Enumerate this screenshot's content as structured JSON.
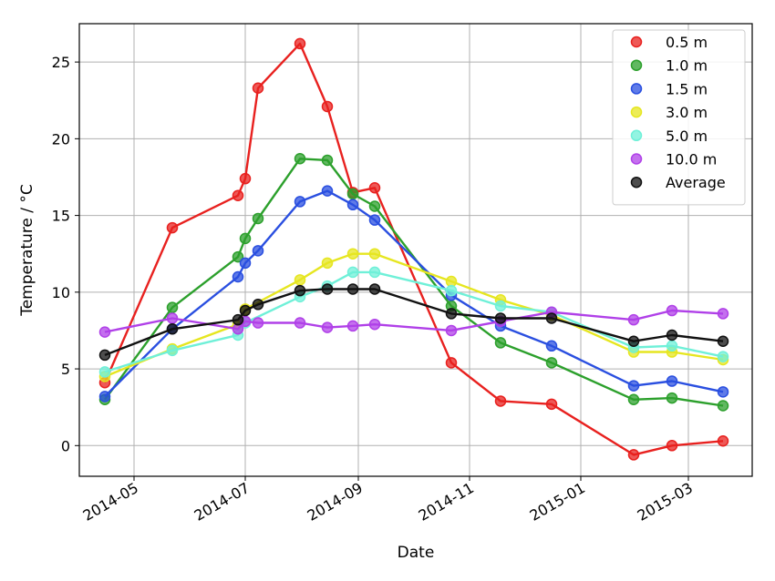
{
  "chart_data": {
    "type": "line",
    "xlabel": "Date",
    "ylabel": "Temperature / °C",
    "x_ticks": [
      "2014-05",
      "2014-07",
      "2014-09",
      "2014-11",
      "2015-01",
      "2015-03"
    ],
    "x_tick_dates": [
      "2014-05-01",
      "2014-07-01",
      "2014-09-01",
      "2014-11-01",
      "2015-01-01",
      "2015-03-01"
    ],
    "xlim": [
      "2014-04-01",
      "2015-04-05"
    ],
    "y_ticks": [
      "0",
      "5",
      "10",
      "15",
      "20",
      "25"
    ],
    "y_tick_values": [
      0,
      5,
      10,
      15,
      20,
      25
    ],
    "ylim": [
      -2,
      27.5
    ],
    "grid": true,
    "legend_position": "top-right",
    "series": [
      {
        "name": "0.5 m",
        "color": "#e8211f",
        "points": [
          [
            "2014-04-15",
            4.1
          ],
          [
            "2014-05-22",
            14.2
          ],
          [
            "2014-06-27",
            16.3
          ],
          [
            "2014-07-01",
            17.4
          ],
          [
            "2014-07-08",
            23.3
          ],
          [
            "2014-07-31",
            26.2
          ],
          [
            "2014-08-15",
            22.1
          ],
          [
            "2014-08-29",
            16.5
          ],
          [
            "2014-09-10",
            16.8
          ],
          [
            "2014-10-22",
            5.4
          ],
          [
            "2014-11-18",
            2.9
          ],
          [
            "2014-12-16",
            2.7
          ],
          [
            "2015-01-30",
            -0.6
          ],
          [
            "2015-02-20",
            0.0
          ],
          [
            "2015-03-20",
            0.3
          ]
        ]
      },
      {
        "name": "1.0 m",
        "color": "#2ca02c",
        "points": [
          [
            "2014-04-15",
            3.0
          ],
          [
            "2014-05-22",
            9.0
          ],
          [
            "2014-06-27",
            12.3
          ],
          [
            "2014-07-01",
            13.5
          ],
          [
            "2014-07-08",
            14.8
          ],
          [
            "2014-07-31",
            18.7
          ],
          [
            "2014-08-15",
            18.6
          ],
          [
            "2014-08-29",
            16.4
          ],
          [
            "2014-09-10",
            15.6
          ],
          [
            "2014-10-22",
            9.1
          ],
          [
            "2014-11-18",
            6.7
          ],
          [
            "2014-12-16",
            5.4
          ],
          [
            "2015-01-30",
            3.0
          ],
          [
            "2015-02-20",
            3.1
          ],
          [
            "2015-03-20",
            2.6
          ]
        ]
      },
      {
        "name": "1.5 m",
        "color": "#2a4fe0",
        "points": [
          [
            "2014-04-15",
            3.2
          ],
          [
            "2014-05-22",
            7.6
          ],
          [
            "2014-06-27",
            11.0
          ],
          [
            "2014-07-01",
            11.9
          ],
          [
            "2014-07-08",
            12.7
          ],
          [
            "2014-07-31",
            15.9
          ],
          [
            "2014-08-15",
            16.6
          ],
          [
            "2014-08-29",
            15.7
          ],
          [
            "2014-09-10",
            14.7
          ],
          [
            "2014-10-22",
            9.8
          ],
          [
            "2014-11-18",
            7.8
          ],
          [
            "2014-12-16",
            6.5
          ],
          [
            "2015-01-30",
            3.9
          ],
          [
            "2015-02-20",
            4.2
          ],
          [
            "2015-03-20",
            3.5
          ]
        ]
      },
      {
        "name": "3.0 m",
        "color": "#e6e620",
        "points": [
          [
            "2014-04-15",
            4.5
          ],
          [
            "2014-05-22",
            6.3
          ],
          [
            "2014-06-27",
            7.9
          ],
          [
            "2014-07-01",
            8.9
          ],
          [
            "2014-07-31",
            10.8
          ],
          [
            "2014-08-15",
            11.9
          ],
          [
            "2014-08-29",
            12.5
          ],
          [
            "2014-09-10",
            12.5
          ],
          [
            "2014-10-22",
            10.7
          ],
          [
            "2014-11-18",
            9.5
          ],
          [
            "2014-12-16",
            8.5
          ],
          [
            "2015-01-30",
            6.1
          ],
          [
            "2015-02-20",
            6.1
          ],
          [
            "2015-03-20",
            5.6
          ]
        ]
      },
      {
        "name": "5.0 m",
        "color": "#6ff0d8",
        "points": [
          [
            "2014-04-15",
            4.8
          ],
          [
            "2014-05-22",
            6.2
          ],
          [
            "2014-06-27",
            7.2
          ],
          [
            "2014-07-01",
            8.0
          ],
          [
            "2014-07-31",
            9.7
          ],
          [
            "2014-08-15",
            10.4
          ],
          [
            "2014-08-29",
            11.3
          ],
          [
            "2014-09-10",
            11.3
          ],
          [
            "2014-10-22",
            10.1
          ],
          [
            "2014-11-18",
            9.1
          ],
          [
            "2014-12-16",
            8.7
          ],
          [
            "2015-01-30",
            6.4
          ],
          [
            "2015-02-20",
            6.5
          ],
          [
            "2015-03-20",
            5.8
          ]
        ]
      },
      {
        "name": "10.0 m",
        "color": "#b040e8",
        "points": [
          [
            "2014-04-15",
            7.4
          ],
          [
            "2014-05-22",
            8.3
          ],
          [
            "2014-06-27",
            7.6
          ],
          [
            "2014-07-01",
            8.1
          ],
          [
            "2014-07-08",
            8.0
          ],
          [
            "2014-07-31",
            8.0
          ],
          [
            "2014-08-15",
            7.7
          ],
          [
            "2014-08-29",
            7.8
          ],
          [
            "2014-09-10",
            7.9
          ],
          [
            "2014-10-22",
            7.5
          ],
          [
            "2014-11-18",
            8.1
          ],
          [
            "2014-12-16",
            8.7
          ],
          [
            "2015-01-30",
            8.2
          ],
          [
            "2015-02-20",
            8.8
          ],
          [
            "2015-03-20",
            8.6
          ]
        ]
      },
      {
        "name": "Average",
        "color": "#111111",
        "points": [
          [
            "2014-04-15",
            5.9
          ],
          [
            "2014-05-22",
            7.6
          ],
          [
            "2014-06-27",
            8.2
          ],
          [
            "2014-07-01",
            8.8
          ],
          [
            "2014-07-08",
            9.2
          ],
          [
            "2014-07-31",
            10.1
          ],
          [
            "2014-08-15",
            10.2
          ],
          [
            "2014-08-29",
            10.2
          ],
          [
            "2014-09-10",
            10.2
          ],
          [
            "2014-10-22",
            8.6
          ],
          [
            "2014-11-18",
            8.3
          ],
          [
            "2014-12-16",
            8.3
          ],
          [
            "2015-01-30",
            6.8
          ],
          [
            "2015-02-20",
            7.2
          ],
          [
            "2015-03-20",
            6.8
          ]
        ]
      }
    ]
  }
}
